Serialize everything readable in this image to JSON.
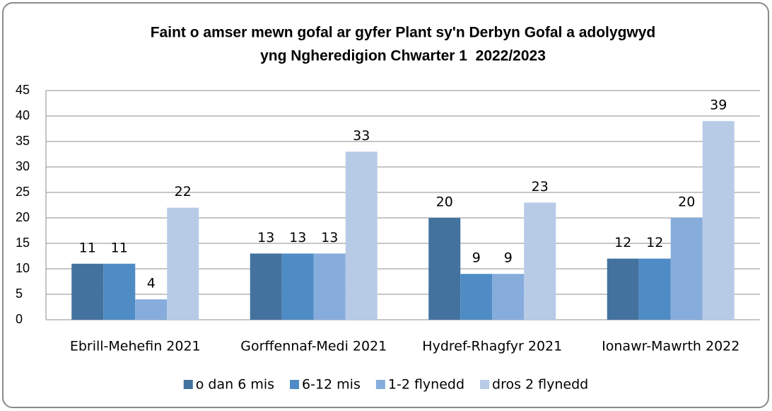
{
  "chart_data": {
    "type": "bar",
    "title": [
      "Faint o amser mewn gofal ar gyfer Plant sy'n Derbyn Gofal a adolygwyd",
      "yng Ngheredigion Chwarter 1  2022/2023"
    ],
    "categories": [
      "Ebrill-Mehefin 2021",
      "Gorffennaf-Medi 2021",
      "Hydref-Rhagfyr 2021",
      "Ionawr-Mawrth 2022"
    ],
    "series": [
      {
        "name": "o dan 6 mis",
        "color": "#43729f",
        "values": [
          11,
          13,
          20,
          12
        ]
      },
      {
        "name": "6-12 mis",
        "color": "#4f8cc6",
        "values": [
          11,
          13,
          9,
          12
        ]
      },
      {
        "name": "1-2 flynedd",
        "color": "#86acdc",
        "values": [
          4,
          13,
          9,
          20
        ]
      },
      {
        "name": "dros 2 flynedd",
        "color": "#b7cbe7",
        "values": [
          22,
          33,
          23,
          39
        ]
      }
    ],
    "ylim": [
      0,
      45
    ],
    "yticks": [
      0,
      5,
      10,
      15,
      20,
      25,
      30,
      35,
      40,
      45
    ],
    "grid": true,
    "legend": "bottom"
  }
}
